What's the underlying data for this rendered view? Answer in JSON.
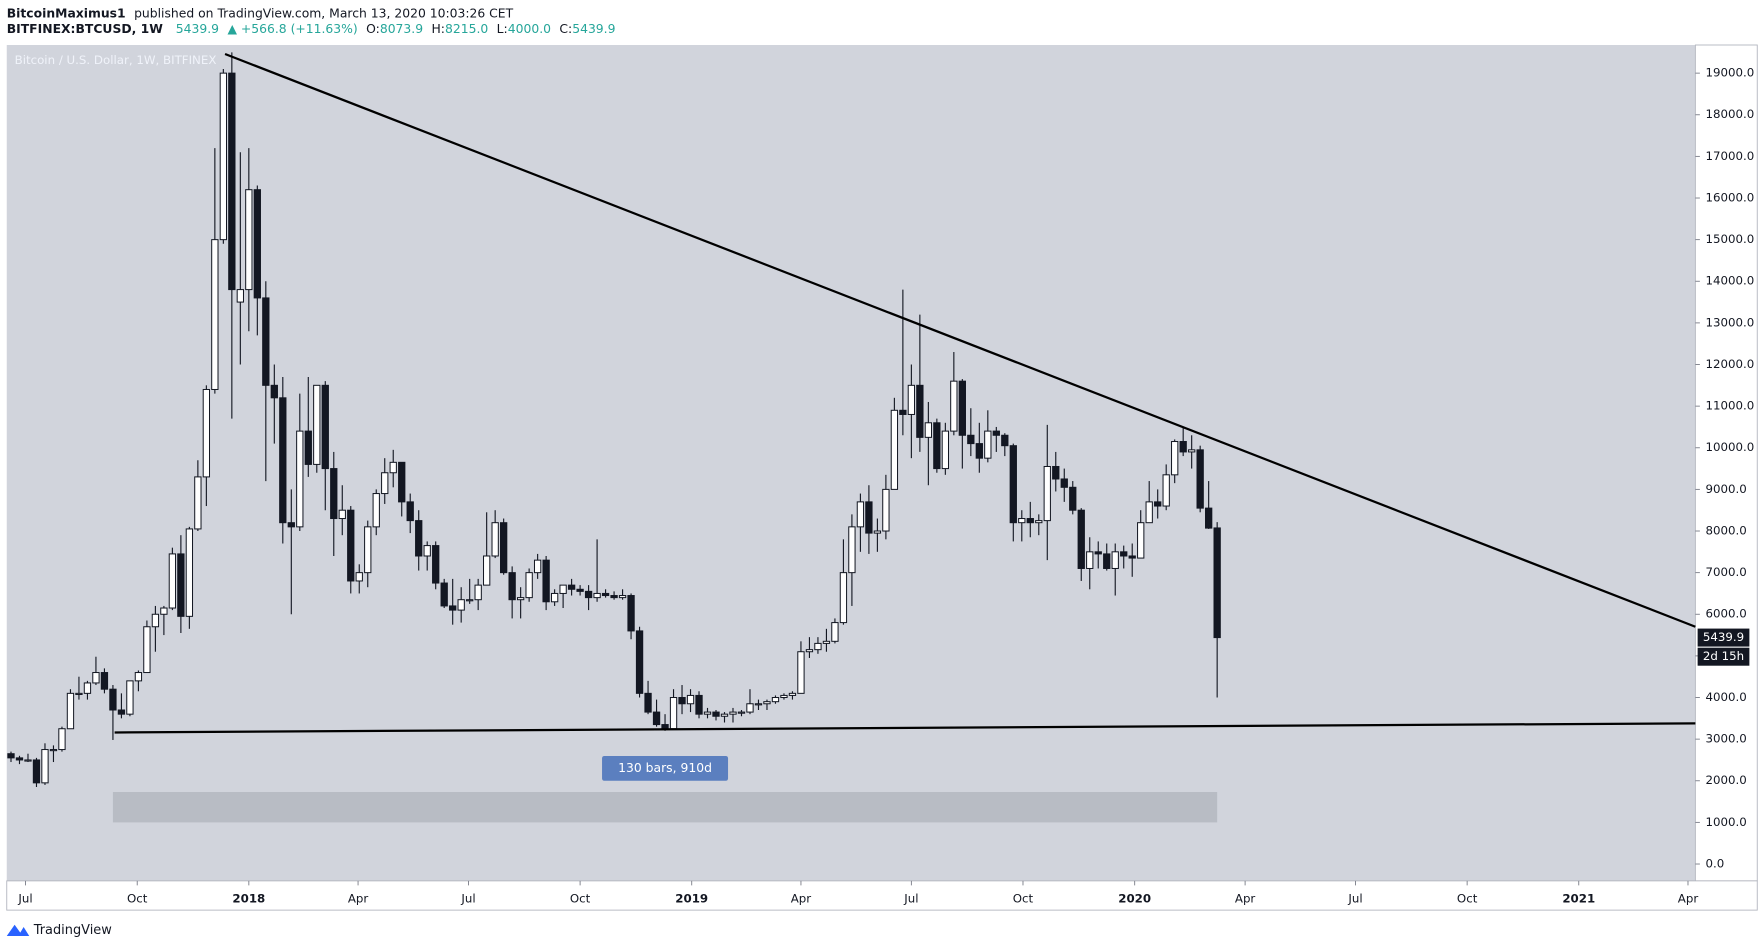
{
  "header": {
    "author": "BitcoinMaximus1",
    "published": "published on TradingView.com, March 13, 2020 10:03:26 CET",
    "symbol": "BITFINEX:BTCUSD, 1W",
    "last": "5439.9",
    "change": "▲ +566.8 (+11.63%)",
    "ohlc": [
      {
        "key": "O:",
        "value": "8073.9"
      },
      {
        "key": "H:",
        "value": "8215.0"
      },
      {
        "key": "L:",
        "value": "4000.0"
      },
      {
        "key": "C:",
        "value": "5439.9"
      }
    ]
  },
  "footer": {
    "brand": "TradingView"
  },
  "chart_data": {
    "type": "candlestick",
    "title": "Bitcoin / U.S. Dollar, 1W, BITFINEX",
    "x": [
      0,
      1,
      2,
      3,
      4,
      5,
      6,
      7,
      8,
      9,
      10,
      11,
      12,
      13,
      14,
      15,
      16,
      17,
      18,
      19,
      20,
      21,
      22,
      23,
      24,
      25,
      26,
      27,
      28,
      29,
      30,
      31,
      32,
      33,
      34,
      35,
      36,
      37,
      38,
      39,
      40,
      41,
      42,
      43,
      44,
      45,
      46,
      47,
      48,
      49,
      50,
      51,
      52,
      53,
      54,
      55,
      56,
      57,
      58,
      59,
      60,
      61,
      62,
      63,
      64,
      65,
      66,
      67,
      68,
      69,
      70,
      71,
      72,
      73,
      74,
      75,
      76,
      77,
      78,
      79,
      80,
      81,
      82,
      83,
      84,
      85,
      86,
      87,
      88,
      89,
      90,
      91,
      92,
      93,
      94,
      95,
      96,
      97,
      98,
      99,
      100,
      101,
      102,
      103,
      104,
      105,
      106,
      107,
      108,
      109,
      110,
      111,
      112,
      113,
      114,
      115,
      116,
      117,
      118,
      119,
      120,
      121,
      122,
      123,
      124,
      125,
      126,
      127,
      128,
      129,
      130,
      131,
      132,
      133,
      134,
      135,
      136,
      137,
      138,
      139,
      140,
      141,
      142
    ],
    "open": [
      2650,
      2550,
      2500,
      2500,
      1950,
      2750,
      2750,
      3250,
      4100,
      4100,
      4350,
      4600,
      4200,
      3700,
      3600,
      4400,
      4600,
      5700,
      6000,
      6150,
      7450,
      5950,
      8050,
      9300,
      11400,
      15000,
      19000,
      13500,
      13800,
      16200,
      13600,
      11500,
      11200,
      8200,
      8100,
      10400,
      9600,
      11500,
      9500,
      8300,
      8500,
      6800,
      7000,
      8100,
      8900,
      9400,
      9650,
      8700,
      8250,
      7400,
      7650,
      6750,
      6200,
      6100,
      6350,
      6350,
      6700,
      7400,
      8200,
      7000,
      6350,
      6400,
      7000,
      7300,
      6300,
      6500,
      6700,
      6600,
      6550,
      6400,
      6500,
      6450,
      6400,
      6450,
      5600,
      4100,
      3650,
      3350,
      3250,
      4000,
      3850,
      4050,
      3600,
      3650,
      3550,
      3600,
      3650,
      3650,
      3850,
      3850,
      3900,
      4000,
      4050,
      4100,
      5100,
      5150,
      5300,
      5350,
      5800,
      7000,
      8100,
      8700,
      7950,
      8000,
      9000,
      10900,
      10800,
      11500,
      10250,
      10600,
      9500,
      10400,
      11600,
      10300,
      10100,
      9750,
      10400,
      10300,
      10050,
      8200,
      8300,
      8200,
      8250,
      9550,
      9250,
      9050,
      8500,
      7100,
      7500,
      7450,
      7100,
      7500,
      7400,
      7350,
      8200,
      8700,
      8600,
      9350,
      10150,
      9900,
      9950,
      8550,
      8073.9
    ],
    "high": [
      2700,
      2600,
      2650,
      2550,
      2900,
      2850,
      3300,
      4200,
      4500,
      4400,
      4980,
      4700,
      4300,
      4100,
      4400,
      4650,
      5850,
      6200,
      6200,
      7600,
      7900,
      8100,
      9700,
      11500,
      17200,
      19100,
      19500,
      17100,
      17200,
      16300,
      14000,
      12000,
      11700,
      9000,
      11300,
      11700,
      11500,
      11600,
      9900,
      9100,
      8600,
      7200,
      8250,
      9000,
      9750,
      9950,
      9650,
      8900,
      8500,
      7750,
      7750,
      6850,
      6850,
      6650,
      6850,
      6850,
      8450,
      8500,
      8300,
      7150,
      6650,
      7100,
      7450,
      7400,
      6600,
      6700,
      6850,
      6700,
      6700,
      7800,
      6600,
      6550,
      6600,
      6500,
      5700,
      4400,
      3950,
      3600,
      4200,
      4300,
      4200,
      4150,
      3750,
      3700,
      3650,
      3750,
      3700,
      4200,
      3950,
      3950,
      4050,
      4100,
      4150,
      5350,
      5450,
      5450,
      5650,
      5900,
      7800,
      8400,
      8900,
      9100,
      8300,
      9350,
      11200,
      13800,
      12000,
      13200,
      11100,
      10700,
      10600,
      12300,
      11650,
      10950,
      10600,
      10900,
      10500,
      10350,
      10100,
      8500,
      8700,
      8400,
      10550,
      9900,
      9500,
      9200,
      8550,
      7850,
      7750,
      7700,
      7700,
      7650,
      7700,
      8500,
      9200,
      9000,
      9600,
      10200,
      10500,
      10300,
      10050,
      9200,
      8215
    ],
    "low": [
      2450,
      2400,
      2450,
      1850,
      1900,
      2450,
      2700,
      3250,
      3950,
      3950,
      4300,
      4100,
      2980,
      3500,
      3550,
      4150,
      4600,
      5100,
      5500,
      6100,
      5550,
      5650,
      8000,
      8600,
      11300,
      14900,
      10700,
      12000,
      12800,
      12700,
      9200,
      10100,
      7700,
      6000,
      8000,
      9300,
      9400,
      8500,
      7400,
      7900,
      6500,
      6500,
      6650,
      7900,
      8650,
      9050,
      8350,
      7950,
      7050,
      7050,
      6600,
      6150,
      5750,
      5800,
      6250,
      6100,
      6700,
      7350,
      6950,
      5900,
      5900,
      6300,
      6850,
      6100,
      6200,
      6150,
      6450,
      6450,
      6100,
      6300,
      6400,
      6350,
      6350,
      5400,
      4000,
      3600,
      3300,
      3200,
      3250,
      3600,
      3650,
      3500,
      3500,
      3450,
      3400,
      3400,
      3550,
      3600,
      3700,
      3700,
      3850,
      3950,
      3950,
      4100,
      4950,
      5050,
      5100,
      5300,
      5750,
      6200,
      7500,
      7450,
      7500,
      7800,
      9000,
      10300,
      9750,
      9900,
      9100,
      9400,
      9350,
      10300,
      9500,
      9800,
      9400,
      9650,
      9900,
      9800,
      7750,
      7750,
      7850,
      7900,
      7300,
      8950,
      8700,
      8400,
      6800,
      6600,
      7100,
      7050,
      6450,
      7100,
      6900,
      7350,
      8200,
      8300,
      8500,
      9150,
      9800,
      9500,
      8450,
      8050,
      4000
    ],
    "close": [
      2550,
      2500,
      2500,
      1950,
      2750,
      2750,
      3250,
      4100,
      4100,
      4350,
      4600,
      4200,
      3700,
      3600,
      4400,
      4600,
      5700,
      6000,
      6150,
      7450,
      5950,
      8050,
      9300,
      11400,
      15000,
      19000,
      13800,
      13800,
      16200,
      13600,
      11500,
      11200,
      8200,
      8100,
      10400,
      9600,
      11500,
      9500,
      8300,
      8500,
      6800,
      7000,
      8100,
      8900,
      9400,
      9650,
      8700,
      8250,
      7400,
      7650,
      6750,
      6200,
      6100,
      6350,
      6350,
      6700,
      7400,
      8200,
      7000,
      6350,
      6400,
      7000,
      7300,
      6300,
      6500,
      6700,
      6600,
      6550,
      6400,
      6500,
      6450,
      6400,
      6450,
      5600,
      4100,
      3650,
      3350,
      3250,
      4000,
      3850,
      4050,
      3600,
      3650,
      3550,
      3600,
      3650,
      3650,
      3850,
      3850,
      3900,
      4000,
      4050,
      4100,
      5100,
      5150,
      5300,
      5350,
      5800,
      7000,
      8100,
      8700,
      7950,
      8000,
      9000,
      10900,
      10800,
      11500,
      10250,
      10600,
      9500,
      10400,
      11600,
      10300,
      10100,
      9750,
      10400,
      10300,
      10050,
      8200,
      8300,
      8200,
      8250,
      9550,
      9250,
      9050,
      8500,
      7100,
      7500,
      7450,
      7100,
      7500,
      7400,
      7350,
      8200,
      8700,
      8600,
      9350,
      10150,
      9900,
      9950,
      8550,
      8070,
      5439.9
    ],
    "up_color": "#ffffff",
    "down_color": "#131722",
    "xlim": [
      -0.5,
      198.3
    ],
    "xticks": [
      {
        "value": 1.71,
        "label": "Jul"
      },
      {
        "value": 14.86,
        "label": "Oct"
      },
      {
        "value": 28,
        "label": "2018"
      },
      {
        "value": 40.86,
        "label": "Apr"
      },
      {
        "value": 53.86,
        "label": "Jul"
      },
      {
        "value": 67,
        "label": "Oct"
      },
      {
        "value": 80.14,
        "label": "2019"
      },
      {
        "value": 93,
        "label": "Apr"
      },
      {
        "value": 106,
        "label": "Jul"
      },
      {
        "value": 119.14,
        "label": "Oct"
      },
      {
        "value": 132.29,
        "label": "2020"
      },
      {
        "value": 145.29,
        "label": "Apr"
      },
      {
        "value": 158.29,
        "label": "Jul"
      },
      {
        "value": 171.43,
        "label": "Oct"
      },
      {
        "value": 184.57,
        "label": "2021"
      },
      {
        "value": 197.43,
        "label": "Apr"
      }
    ],
    "ylim": [
      -405,
      19676
    ],
    "yticks": [
      {
        "value": 0,
        "label": "0.0"
      },
      {
        "value": 1000,
        "label": "1000.0"
      },
      {
        "value": 2000,
        "label": "2000.0"
      },
      {
        "value": 3000,
        "label": "3000.0"
      },
      {
        "value": 4000,
        "label": "4000.0"
      },
      {
        "value": 5000,
        "label": "5000.0"
      },
      {
        "value": 6000,
        "label": "6000.0"
      },
      {
        "value": 7000,
        "label": "7000.0"
      },
      {
        "value": 8000,
        "label": "8000.0"
      },
      {
        "value": 9000,
        "label": "9000.0"
      },
      {
        "value": 10000,
        "label": "10000.0"
      },
      {
        "value": 11000,
        "label": "11000.0"
      },
      {
        "value": 12000,
        "label": "12000.0"
      },
      {
        "value": 13000,
        "label": "13000.0"
      },
      {
        "value": 14000,
        "label": "14000.0"
      },
      {
        "value": 15000,
        "label": "15000.0"
      },
      {
        "value": 16000,
        "label": "16000.0"
      },
      {
        "value": 17000,
        "label": "17000.0"
      },
      {
        "value": 18000,
        "label": "18000.0"
      },
      {
        "value": 19000,
        "label": "19000.0"
      }
    ],
    "trendlines": [
      {
        "x": [
          25.2,
          198.3
        ],
        "y": [
          19460,
          5700
        ]
      },
      {
        "x": [
          12.2,
          198.3
        ],
        "y": [
          3160,
          3380
        ]
      }
    ],
    "range": {
      "label": "130 bars, 910d",
      "x": [
        12,
        142
      ],
      "y": [
        1000,
        1730
      ]
    },
    "countdown": "2d 15h"
  }
}
